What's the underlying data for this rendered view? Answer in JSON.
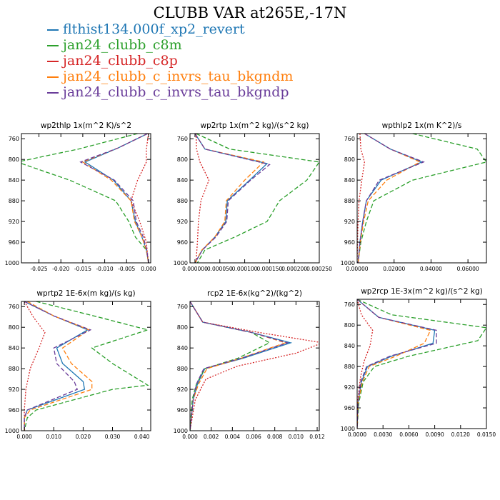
{
  "figure": {
    "title": "CLUBB VAR at265E,-17N"
  },
  "colors": {
    "blue": "#1f77b4",
    "green": "#2ca02c",
    "red": "#d62728",
    "orange": "#ff7f0e",
    "purple": "#6a3d9a"
  },
  "legend": [
    {
      "label": "flthist134.000f_xp2_revert",
      "color": "#1f77b4"
    },
    {
      "label": "jan24_clubb_c8m",
      "color": "#2ca02c"
    },
    {
      "label": "jan24_clubb_c8p",
      "color": "#d62728"
    },
    {
      "label": "jan24_clubb_c_invrs_tau_bkgndm",
      "color": "#ff7f0e"
    },
    {
      "label": "jan24_clubb_c_invrs_tau_bkgndp",
      "color": "#6a3d9a"
    }
  ],
  "chart_data": [
    {
      "type": "line",
      "title": "wp2thlp  1x(m^2 K)/s^2",
      "xlim": [
        -0.029,
        0.0005
      ],
      "ylim": [
        1000,
        750
      ],
      "xticks": [
        -0.025,
        -0.02,
        -0.015,
        -0.01,
        -0.005,
        0.0
      ],
      "xticklabels": [
        "-0.025",
        "-0.020",
        "-0.015",
        "-0.010",
        "-0.005",
        "0.000"
      ],
      "yticks": [
        760,
        800,
        840,
        880,
        920,
        960,
        1000
      ],
      "yticklabels": [
        "760",
        "800",
        "840",
        "880",
        "920",
        "960",
        "1000"
      ],
      "series": [
        {
          "color": "#1f77b4",
          "dash": "none",
          "x": [
            -0.0002,
            -0.007,
            -0.0145,
            -0.008,
            -0.004,
            -0.003,
            -0.0015,
            -0.0005,
            0
          ],
          "y": [
            750,
            778,
            805,
            840,
            880,
            920,
            950,
            975,
            1000
          ]
        },
        {
          "color": "#2ca02c",
          "dash": "6,3",
          "x": [
            -0.0025,
            -0.016,
            -0.03,
            -0.018,
            -0.0075,
            -0.0045,
            -0.003,
            -0.0005,
            0
          ],
          "y": [
            750,
            780,
            805,
            840,
            880,
            920,
            950,
            975,
            1000
          ]
        },
        {
          "color": "#d62728",
          "dash": "2,2",
          "x": [
            0,
            -0.0005,
            -0.0005,
            -0.0025,
            -0.004,
            -0.002,
            -0.0005,
            0
          ],
          "y": [
            750,
            780,
            805,
            840,
            880,
            920,
            960,
            1000
          ]
        },
        {
          "color": "#ff7f0e",
          "dash": "6,3",
          "x": [
            -0.0002,
            -0.007,
            -0.015,
            -0.0085,
            -0.004,
            -0.0032,
            -0.0015,
            -0.0005,
            0
          ],
          "y": [
            750,
            778,
            805,
            840,
            880,
            920,
            950,
            975,
            1000
          ]
        },
        {
          "color": "#6a3d9a",
          "dash": "6,3",
          "x": [
            -0.0002,
            -0.007,
            -0.0155,
            -0.0078,
            -0.0035,
            -0.0028,
            -0.0012,
            -0.0004,
            0
          ],
          "y": [
            750,
            778,
            805,
            840,
            880,
            920,
            950,
            975,
            1000
          ]
        }
      ]
    },
    {
      "type": "line",
      "title": "wp2rtp  1x(m^2 kg)/(s^2 kg)",
      "xlim": [
        -1e-05,
        0.00025
      ],
      "ylim": [
        1000,
        750
      ],
      "xticks": [
        0,
        5e-05,
        0.0001,
        0.00015,
        0.0002,
        0.00025
      ],
      "xticklabels": [
        "0.000000",
        "0.000050",
        "0.000100",
        "0.000150",
        "0.000200",
        "0.000250"
      ],
      "yticks": [
        760,
        800,
        840,
        880,
        920,
        960,
        1000
      ],
      "yticklabels": [
        "760",
        "800",
        "840",
        "880",
        "920",
        "960",
        "1000"
      ],
      "series": [
        {
          "color": "#1f77b4",
          "dash": "none",
          "x": [
            0,
            2e-05,
            0.000145,
            0.00011,
            6.5e-05,
            6.2e-05,
            4e-05,
            1.5e-05,
            0
          ],
          "y": [
            750,
            780,
            808,
            840,
            880,
            920,
            950,
            975,
            1000
          ]
        },
        {
          "color": "#2ca02c",
          "dash": "6,3",
          "x": [
            2e-06,
            7e-05,
            0.00025,
            0.000225,
            0.00017,
            0.000145,
            8e-05,
            2e-05,
            5e-06
          ],
          "y": [
            750,
            780,
            805,
            840,
            880,
            920,
            950,
            975,
            1000
          ]
        },
        {
          "color": "#d62728",
          "dash": "2,2",
          "x": [
            2e-06,
            3e-06,
            1e-05,
            2.8e-05,
            1.2e-05,
            7e-06,
            5e-06,
            2e-06
          ],
          "y": [
            750,
            780,
            805,
            840,
            880,
            920,
            960,
            1000
          ]
        },
        {
          "color": "#ff7f0e",
          "dash": "6,3",
          "x": [
            0,
            2e-05,
            0.000138,
            0.0001,
            6.3e-05,
            6e-05,
            4e-05,
            1.4e-05,
            0
          ],
          "y": [
            750,
            780,
            805,
            840,
            880,
            920,
            950,
            975,
            1000
          ]
        },
        {
          "color": "#6a3d9a",
          "dash": "6,3",
          "x": [
            0,
            2e-05,
            0.00015,
            0.000112,
            6.7e-05,
            6.4e-05,
            4.2e-05,
            1.5e-05,
            0
          ],
          "y": [
            750,
            780,
            810,
            840,
            880,
            920,
            950,
            975,
            1000
          ]
        }
      ]
    },
    {
      "type": "line",
      "title": "wpthlp2  1x(m K^2)/s",
      "xlim": [
        0,
        0.07
      ],
      "ylim": [
        1000,
        750
      ],
      "xticks": [
        0,
        0.02,
        0.04,
        0.06
      ],
      "xticklabels": [
        "0.00000",
        "0.02000",
        "0.04000",
        "0.06000"
      ],
      "yticks": [
        760,
        800,
        840,
        880,
        920,
        960,
        1000
      ],
      "yticklabels": [
        "760",
        "800",
        "840",
        "880",
        "920",
        "960",
        "1000"
      ],
      "series": [
        {
          "color": "#1f77b4",
          "dash": "none",
          "x": [
            0.004,
            0.018,
            0.035,
            0.013,
            0.005,
            0.003,
            0.0015,
            0.0005
          ],
          "y": [
            750,
            780,
            805,
            840,
            880,
            920,
            960,
            1000
          ]
        },
        {
          "color": "#2ca02c",
          "dash": "6,3",
          "x": [
            0.03,
            0.065,
            0.07,
            0.03,
            0.009,
            0.005,
            0.002,
            0.0005
          ],
          "y": [
            750,
            780,
            805,
            840,
            880,
            920,
            960,
            1000
          ]
        },
        {
          "color": "#d62728",
          "dash": "2,2",
          "x": [
            0.0015,
            0.002,
            0.004,
            0.0025,
            0.001,
            0.0005,
            0.0002,
            0
          ],
          "y": [
            750,
            780,
            805,
            840,
            880,
            920,
            960,
            1000
          ]
        },
        {
          "color": "#ff7f0e",
          "dash": "6,3",
          "x": [
            0.004,
            0.018,
            0.034,
            0.016,
            0.006,
            0.0035,
            0.0017,
            0.0006
          ],
          "y": [
            750,
            780,
            805,
            840,
            880,
            920,
            960,
            1000
          ]
        },
        {
          "color": "#6a3d9a",
          "dash": "6,3",
          "x": [
            0.004,
            0.018,
            0.036,
            0.012,
            0.005,
            0.003,
            0.0015,
            0.0005
          ],
          "y": [
            750,
            780,
            805,
            840,
            880,
            920,
            960,
            1000
          ]
        }
      ]
    },
    {
      "type": "line",
      "title": "wprtp2  1E-6x(m kg)/(s kg)",
      "xlim": [
        -0.001,
        0.043
      ],
      "ylim": [
        1000,
        750
      ],
      "xticks": [
        0,
        0.01,
        0.02,
        0.03,
        0.04
      ],
      "xticklabels": [
        "0.000",
        "0.010",
        "0.020",
        "0.030",
        "0.040"
      ],
      "yticks": [
        760,
        800,
        840,
        880,
        920,
        960,
        1000
      ],
      "yticklabels": [
        "760",
        "800",
        "840",
        "880",
        "920",
        "960",
        "1000"
      ],
      "series": [
        {
          "color": "#1f77b4",
          "dash": "none",
          "x": [
            0,
            0.01,
            0.0215,
            0.011,
            0.013,
            0.02,
            0.0205,
            0.001,
            0,
            0
          ],
          "y": [
            750,
            778,
            805,
            840,
            870,
            905,
            920,
            960,
            975,
            1000
          ]
        },
        {
          "color": "#2ca02c",
          "dash": "6,3",
          "x": [
            0.004,
            0.025,
            0.042,
            0.023,
            0.03,
            0.042,
            0.03,
            0.004,
            0.001,
            0
          ],
          "y": [
            750,
            780,
            805,
            840,
            870,
            912,
            920,
            960,
            975,
            1000
          ]
        },
        {
          "color": "#d62728",
          "dash": "2,2",
          "x": [
            0,
            0.003,
            0.007,
            0.005,
            0.002,
            0.0005,
            0,
            0
          ],
          "y": [
            750,
            780,
            810,
            840,
            880,
            920,
            960,
            1000
          ]
        },
        {
          "color": "#ff7f0e",
          "dash": "6,3",
          "x": [
            0.001,
            0.01,
            0.022,
            0.013,
            0.016,
            0.023,
            0.023,
            0.002,
            0,
            0
          ],
          "y": [
            750,
            778,
            805,
            840,
            870,
            905,
            920,
            960,
            975,
            1000
          ]
        },
        {
          "color": "#6a3d9a",
          "dash": "6,3",
          "x": [
            0,
            0.01,
            0.0225,
            0.01,
            0.011,
            0.017,
            0.018,
            0.001,
            0,
            0
          ],
          "y": [
            750,
            778,
            805,
            840,
            870,
            905,
            920,
            960,
            975,
            1000
          ]
        }
      ]
    },
    {
      "type": "line",
      "title": "rcp2  1E-6x(kg^2)/(kg^2)",
      "xlim": [
        0,
        0.0122
      ],
      "ylim": [
        1000,
        750
      ],
      "xticks": [
        0,
        0.002,
        0.004,
        0.006,
        0.008,
        0.01,
        0.012
      ],
      "xticklabels": [
        "0.000",
        "0.002",
        "0.004",
        "0.006",
        "0.008",
        "0.010",
        "0.012"
      ],
      "yticks": [
        760,
        800,
        840,
        880,
        920,
        960,
        1000
      ],
      "yticklabels": [
        "760",
        "800",
        "840",
        "880",
        "920",
        "960",
        "1000"
      ],
      "series": [
        {
          "color": "#1f77b4",
          "dash": "none",
          "x": [
            0,
            0.0012,
            0.0058,
            0.0095,
            0.005,
            0.0014,
            0.0007,
            0.0003,
            0
          ],
          "y": [
            750,
            790,
            810,
            830,
            860,
            880,
            910,
            940,
            1000
          ]
        },
        {
          "color": "#2ca02c",
          "dash": "6,3",
          "x": [
            0,
            0.0012,
            0.0058,
            0.0075,
            0.0045,
            0.0014,
            0.0006,
            0.0002,
            0
          ],
          "y": [
            750,
            790,
            810,
            830,
            860,
            880,
            910,
            940,
            1000
          ]
        },
        {
          "color": "#d62728",
          "dash": "2,2",
          "x": [
            0,
            0.0012,
            0.0065,
            0.0125,
            0.01,
            0.0045,
            0.0015,
            0.0005,
            0
          ],
          "y": [
            750,
            790,
            810,
            830,
            850,
            875,
            900,
            940,
            1000
          ]
        },
        {
          "color": "#ff7f0e",
          "dash": "6,3",
          "x": [
            0,
            0.0012,
            0.0058,
            0.009,
            0.0048,
            0.0016,
            0.0008,
            0.0003,
            0
          ],
          "y": [
            750,
            790,
            810,
            830,
            860,
            880,
            910,
            940,
            1000
          ]
        },
        {
          "color": "#6a3d9a",
          "dash": "6,3",
          "x": [
            0,
            0.0012,
            0.0058,
            0.0092,
            0.0048,
            0.0013,
            0.0006,
            0.0003,
            0
          ],
          "y": [
            750,
            790,
            810,
            830,
            860,
            880,
            910,
            940,
            1000
          ]
        }
      ]
    },
    {
      "type": "line",
      "title": "wp2rcp  1E-3x(m^2 kg)/(s^2 kg)",
      "xlim": [
        0,
        0.015
      ],
      "ylim": [
        1000,
        750
      ],
      "xticks": [
        0,
        0.003,
        0.006,
        0.009,
        0.012,
        0.015
      ],
      "xticklabels": [
        "0.0000",
        "0.0030",
        "0.0060",
        "0.0090",
        "0.0120",
        "0.0150"
      ],
      "yticks": [
        760,
        800,
        840,
        880,
        920,
        960,
        1000
      ],
      "yticklabels": [
        "760",
        "800",
        "840",
        "880",
        "920",
        "960",
        "1000"
      ],
      "series": [
        {
          "color": "#1f77b4",
          "dash": "none",
          "x": [
            0,
            0.0025,
            0.009,
            0.0088,
            0.004,
            0.0012,
            0.0005,
            0.0001,
            0
          ],
          "y": [
            750,
            785,
            810,
            835,
            860,
            880,
            910,
            950,
            1000
          ]
        },
        {
          "color": "#2ca02c",
          "dash": "6,3",
          "x": [
            0,
            0.004,
            0.015,
            0.014,
            0.006,
            0.002,
            0.0007,
            0.0002,
            0
          ],
          "y": [
            750,
            780,
            805,
            830,
            860,
            880,
            910,
            950,
            1000
          ]
        },
        {
          "color": "#d62728",
          "dash": "2,2",
          "x": [
            0,
            0.0005,
            0.0018,
            0.0015,
            0.0008,
            0.0004,
            0.0001,
            0
          ],
          "y": [
            750,
            780,
            810,
            840,
            870,
            900,
            940,
            1000
          ]
        },
        {
          "color": "#ff7f0e",
          "dash": "6,3",
          "x": [
            0,
            0.0025,
            0.0085,
            0.0078,
            0.0045,
            0.0014,
            0.0006,
            0.0001,
            0
          ],
          "y": [
            750,
            785,
            810,
            835,
            860,
            880,
            910,
            950,
            1000
          ]
        },
        {
          "color": "#6a3d9a",
          "dash": "6,3",
          "x": [
            0,
            0.0025,
            0.0092,
            0.0092,
            0.0038,
            0.0011,
            0.0004,
            0.0001,
            0
          ],
          "y": [
            750,
            785,
            810,
            835,
            860,
            880,
            910,
            950,
            1000
          ]
        }
      ]
    }
  ]
}
